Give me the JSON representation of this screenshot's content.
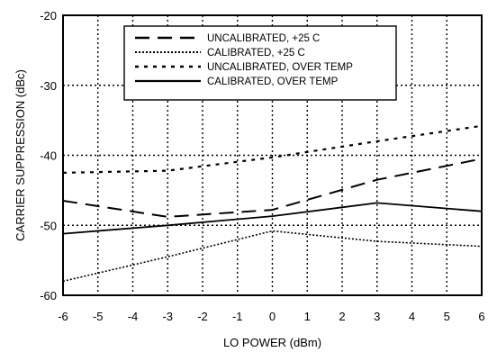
{
  "chart_data": {
    "type": "line",
    "title": "",
    "xlabel": "LO POWER (dBm)",
    "ylabel": "CARRIER SUPPRESSION (dBc)",
    "xlim": [
      -6,
      6
    ],
    "ylim": [
      -60,
      -20
    ],
    "xticks": [
      -6,
      -5,
      -4,
      -3,
      -2,
      -1,
      0,
      1,
      2,
      3,
      4,
      5,
      6
    ],
    "yticks": [
      -20,
      -30,
      -40,
      -50,
      -60
    ],
    "grid": "dotted",
    "legend_position": "top-center",
    "series": [
      {
        "name": "UNCALIBRATED, +25 C",
        "style": "long-dash",
        "x": [
          -6,
          -3,
          0,
          3,
          6
        ],
        "y": [
          -46.5,
          -48.8,
          -47.8,
          -43.5,
          -40.5
        ]
      },
      {
        "name": "CALIBRATED,  +25 C",
        "style": "fine-dotted",
        "x": [
          -6,
          -3,
          0,
          3,
          6
        ],
        "y": [
          -58.0,
          -54.5,
          -50.8,
          -52.3,
          -53.0
        ]
      },
      {
        "name": "UNCALIBRATED, OVER TEMP",
        "style": "short-dash",
        "x": [
          -6,
          -3,
          0,
          3,
          6
        ],
        "y": [
          -42.5,
          -42.2,
          -40.3,
          -38.0,
          -35.8
        ]
      },
      {
        "name": "CALIBRATED, OVER TEMP",
        "style": "solid",
        "x": [
          -6,
          -3,
          0,
          3,
          6
        ],
        "y": [
          -51.2,
          -50.0,
          -48.7,
          -46.8,
          -48.0
        ]
      }
    ]
  }
}
